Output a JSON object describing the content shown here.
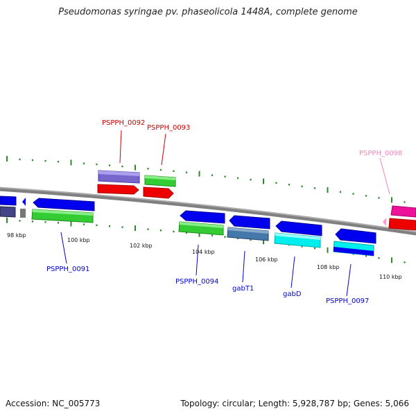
{
  "title": "Pseudomonas syringae pv. phaseolicola 1448A, complete genome",
  "footer": {
    "accession": "Accession: NC_005773",
    "stats": "Topology: circular; Length: 5,928,787 bp; Genes: 5,066"
  },
  "colors": {
    "backbone": "#808080",
    "ticks": "#2a8a2a",
    "upper_label": "#cc0000",
    "lower_label": "#0000cc",
    "faded_label": "#ee88bb"
  },
  "kbp_labels": [
    "98 kbp",
    "100 kbp",
    "102 kbp",
    "104 kbp",
    "106 kbp",
    "108 kbp",
    "110 kbp"
  ],
  "gene_labels": [
    "PSPPH_0092",
    "PSPPH_0093",
    "PSPPH_0098",
    "PSPPH_0091",
    "PSPPH_0094",
    "gabT1",
    "gabD",
    "PSPPH_0097"
  ],
  "genes": [
    {
      "name": "blue-left-1",
      "color": "#0000ee",
      "dir": "left"
    },
    {
      "name": "blue-left-2",
      "color": "#0000ee",
      "dir": "left"
    },
    {
      "name": "blue-left-3",
      "color": "#0000ee",
      "dir": "left"
    },
    {
      "name": "blue-left-4",
      "color": "#0000ee",
      "dir": "left"
    },
    {
      "name": "blue-left-5",
      "color": "#0000ee",
      "dir": "left"
    },
    {
      "name": "blue-left-6",
      "color": "#0000ee",
      "dir": "left"
    },
    {
      "name": "blue-left-7",
      "color": "#0000ee",
      "dir": "left"
    },
    {
      "name": "purple-1",
      "color": "#7766cc",
      "dir": "none"
    },
    {
      "name": "green-1",
      "color": "#33cc33",
      "dir": "none"
    },
    {
      "name": "red-right-1",
      "color": "#ee0000",
      "dir": "right"
    },
    {
      "name": "red-right-2",
      "color": "#ee0000",
      "dir": "right"
    },
    {
      "name": "magenta-1",
      "color": "#ee1199",
      "dir": "none"
    }
  ]
}
